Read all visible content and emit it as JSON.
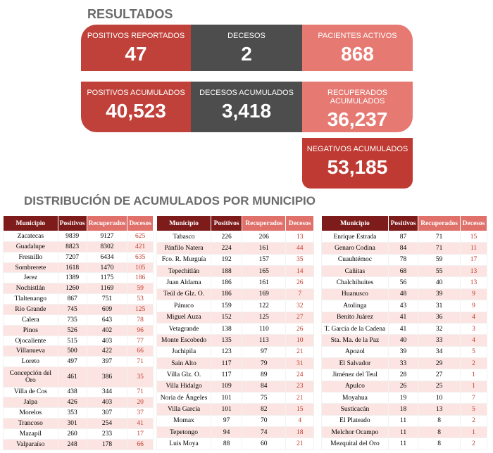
{
  "header": {
    "title": "RESULTADOS"
  },
  "cards": [
    {
      "label": "POSITIVOS REPORTADOS",
      "value": "47"
    },
    {
      "label": "DECESOS",
      "value": "2"
    },
    {
      "label": "PACIENTES ACTIVOS",
      "value": "868"
    },
    {
      "label": "POSITIVOS ACUMULADOS",
      "value": "40,523"
    },
    {
      "label": "DECESOS ACUMULADOS",
      "value": "3,418"
    },
    {
      "label": "RECUPERADOS ACUMULADOS",
      "value": "36,237"
    },
    {
      "label": "NEGATIVOS ACUMULADOS",
      "value": "53,185"
    }
  ],
  "section": {
    "title": "DISTRIBUCIÓN DE ACUMULADOS POR MUNICIPIO"
  },
  "tables": [
    {
      "header": [
        "Municipio",
        "Positivos",
        "Recuperados",
        "Decesos"
      ],
      "rows": [
        [
          "Zacatecas",
          9839,
          9127,
          625
        ],
        [
          "Guadalupe",
          8823,
          8302,
          421
        ],
        [
          "Fresnillo",
          7207,
          6434,
          635
        ],
        [
          "Sombrerete",
          1618,
          1470,
          105
        ],
        [
          "Jerez",
          1389,
          1175,
          186
        ],
        [
          "Nochistlán",
          1260,
          1169,
          59
        ],
        [
          "Tlaltenango",
          867,
          751,
          53
        ],
        [
          "Río Grande",
          745,
          609,
          125
        ],
        [
          "Calera",
          735,
          643,
          78
        ],
        [
          "Pinos",
          526,
          402,
          96
        ],
        [
          "Ojocaliente",
          515,
          403,
          77
        ],
        [
          "Villanueva",
          500,
          422,
          66
        ],
        [
          "Loreto",
          497,
          397,
          71
        ],
        [
          "Concepción del Oro",
          461,
          386,
          35
        ],
        [
          "Villa de Cos",
          438,
          344,
          71
        ],
        [
          "Jalpa",
          426,
          403,
          20
        ],
        [
          "Morelos",
          353,
          307,
          37
        ],
        [
          "Trancoso",
          301,
          254,
          41
        ],
        [
          "Mazapil",
          260,
          233,
          17
        ],
        [
          "Valparaíso",
          248,
          178,
          66
        ]
      ]
    },
    {
      "header": [
        "Municipio",
        "Positivos",
        "Recuperados",
        "Decesos"
      ],
      "rows": [
        [
          "Tabasco",
          226,
          206,
          13
        ],
        [
          "Pánfilo Natera",
          224,
          161,
          44
        ],
        [
          "Fco. R. Murguía",
          192,
          157,
          35
        ],
        [
          "Tepechitlán",
          188,
          165,
          14
        ],
        [
          "Juan Aldama",
          186,
          161,
          26
        ],
        [
          "Teúl de Glz. O.",
          186,
          169,
          7
        ],
        [
          "Pánuco",
          159,
          122,
          32
        ],
        [
          "Miguel Auza",
          152,
          125,
          27
        ],
        [
          "Vetagrande",
          138,
          110,
          26
        ],
        [
          "Monte Escobedo",
          135,
          113,
          10
        ],
        [
          "Juchipila",
          123,
          97,
          21
        ],
        [
          "Sain Alto",
          117,
          79,
          31
        ],
        [
          "Villa Glz. O.",
          117,
          89,
          24
        ],
        [
          "Villa Hidalgo",
          109,
          84,
          23
        ],
        [
          "Noria de Ángeles",
          101,
          75,
          21
        ],
        [
          "Villa García",
          101,
          82,
          15
        ],
        [
          "Momax",
          97,
          70,
          4
        ],
        [
          "Tepetongo",
          94,
          74,
          18
        ],
        [
          "Luis Moya",
          88,
          60,
          21
        ]
      ]
    },
    {
      "header": [
        "Municipio",
        "Positivos",
        "Recuperados",
        "Decesos"
      ],
      "rows": [
        [
          "Enrique Estrada",
          87,
          71,
          15
        ],
        [
          "Genaro Codina",
          84,
          71,
          11
        ],
        [
          "Cuauhtémoc",
          78,
          59,
          17
        ],
        [
          "Cañitas",
          68,
          55,
          13
        ],
        [
          "Chalchihuites",
          56,
          40,
          13
        ],
        [
          "Huanusco",
          48,
          39,
          9
        ],
        [
          "Atolinga",
          43,
          31,
          9
        ],
        [
          "Benito Juárez",
          41,
          36,
          4
        ],
        [
          "T. García de la Cadena",
          41,
          32,
          3
        ],
        [
          "Sta. Ma. de la Paz",
          40,
          33,
          4
        ],
        [
          "Apozol",
          39,
          34,
          5
        ],
        [
          "El Salvador",
          33,
          29,
          2
        ],
        [
          "Jiménez del Teul",
          28,
          27,
          1
        ],
        [
          "Apulco",
          26,
          25,
          1
        ],
        [
          "Moyahua",
          19,
          10,
          7
        ],
        [
          "Susticacán",
          18,
          13,
          5
        ],
        [
          "El Plateado",
          11,
          8,
          2
        ],
        [
          "Melchor Ocampo",
          11,
          8,
          1
        ],
        [
          "Mezquital del Oro",
          11,
          8,
          2
        ]
      ]
    }
  ]
}
